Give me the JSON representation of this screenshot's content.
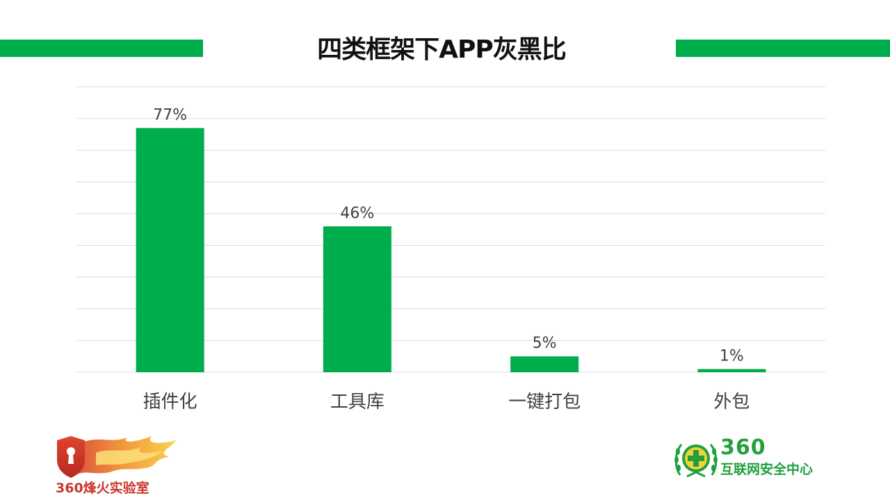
{
  "theme": {
    "accent": "#00ad4d",
    "grid": "#d9d9d9",
    "text": "#404040"
  },
  "header": {
    "title": "四类框架下APP灰黑比"
  },
  "chart_data": {
    "type": "bar",
    "title": "四类框架下APP灰黑比",
    "categories": [
      "插件化",
      "工具库",
      "一键打包",
      "外包"
    ],
    "values": [
      77,
      46,
      5,
      1
    ],
    "value_labels": [
      "77%",
      "46%",
      "5%",
      "1%"
    ],
    "unit": "%",
    "ylim": [
      0,
      90
    ],
    "ytick_step": 10,
    "show_y_axis_labels": false,
    "grid": true,
    "legend": "none",
    "bar_color": "#00ad4d"
  },
  "logos": {
    "left": {
      "text": "360烽火实验室",
      "icon": "flame-shield-keyhole-icon"
    },
    "right": {
      "number": "360",
      "text": "互联网安全中心",
      "icon": "laurel-plus-globe-icon"
    }
  }
}
